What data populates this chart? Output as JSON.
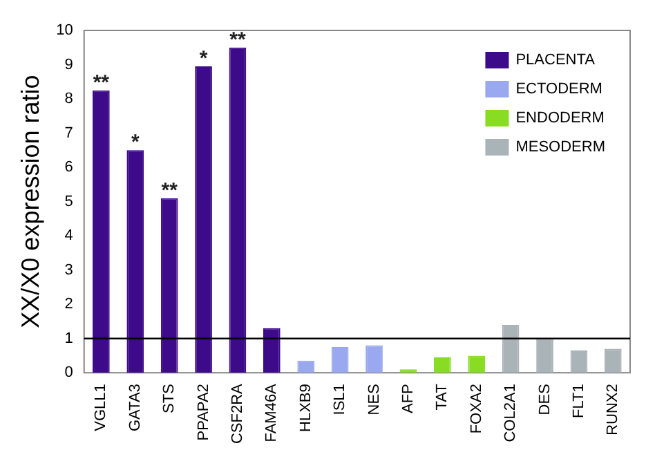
{
  "chart_data": {
    "type": "bar",
    "ylabel": "XX/X0 expression ratio",
    "categories": [
      "VGLL1",
      "GATA3",
      "STS",
      "PPAPA2",
      "CSF2RA",
      "FAM46A",
      "HLXB9",
      "ISL1",
      "NES",
      "AFP",
      "TAT",
      "FOXA2",
      "COL2A1",
      "DES",
      "FLT1",
      "RUNX2"
    ],
    "series": [
      {
        "name": "PLACENTA",
        "color": "#3d0a8a",
        "values": [
          8.25,
          6.5,
          5.1,
          8.95,
          9.5,
          1.3,
          null,
          null,
          null,
          null,
          null,
          null,
          null,
          null,
          null,
          null
        ]
      },
      {
        "name": "ECTODERM",
        "color": "#9aa8f0",
        "values": [
          null,
          null,
          null,
          null,
          null,
          null,
          0.35,
          0.75,
          0.8,
          null,
          null,
          null,
          null,
          null,
          null,
          null
        ]
      },
      {
        "name": "ENDODERM",
        "color": "#88dd22",
        "values": [
          null,
          null,
          null,
          null,
          null,
          null,
          null,
          null,
          null,
          0.1,
          0.45,
          0.5,
          null,
          null,
          null,
          null
        ]
      },
      {
        "name": "MESODERM",
        "color": "#aab4b8",
        "values": [
          null,
          null,
          null,
          null,
          null,
          null,
          null,
          null,
          null,
          null,
          null,
          null,
          1.4,
          1.0,
          0.65,
          0.7
        ]
      }
    ],
    "ylim": [
      0,
      10
    ],
    "yticks": [
      0,
      1,
      2,
      3,
      4,
      5,
      6,
      7,
      8,
      9,
      10
    ],
    "ref_lines": [
      {
        "axis": "y",
        "value": 1
      }
    ],
    "annotations": [
      {
        "text": "**",
        "x": "VGLL1",
        "y": 8.25
      },
      {
        "text": "*",
        "x": "GATA3",
        "y": 6.5
      },
      {
        "text": "**",
        "x": "STS",
        "y": 5.1
      },
      {
        "text": "*",
        "x": "PPAPA2",
        "y": 8.95
      },
      {
        "text": "**",
        "x": "CSF2RA",
        "y": 9.5
      }
    ],
    "grid": false,
    "legend": "top right"
  }
}
